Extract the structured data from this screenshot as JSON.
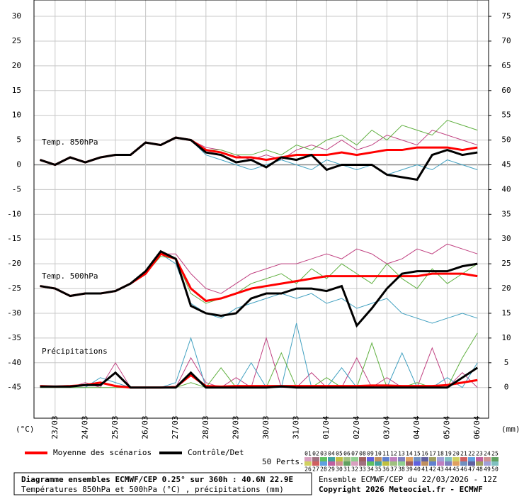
{
  "chart_data": {
    "type": "line",
    "y_label": "(°C)",
    "y2_label": "(mm)",
    "annotations": [
      "Temp. 850hPa",
      "Temp. 500hPa",
      "Précipitations"
    ],
    "grid": true,
    "xlim": [
      -0.7,
      14.37
    ],
    "xticks": [
      {
        "value": 0,
        "label": "23/03"
      },
      {
        "value": 1,
        "label": "24/03"
      },
      {
        "value": 2,
        "label": "25/03"
      },
      {
        "value": 3,
        "label": "26/03"
      },
      {
        "value": 4,
        "label": "27/03"
      },
      {
        "value": 5,
        "label": "28/03"
      },
      {
        "value": 6,
        "label": "29/03"
      },
      {
        "value": 7,
        "label": "30/03"
      },
      {
        "value": 8,
        "label": "31/03"
      },
      {
        "value": 9,
        "label": "01/04"
      },
      {
        "value": 10,
        "label": "02/04"
      },
      {
        "value": 11,
        "label": "03/04"
      },
      {
        "value": 12,
        "label": "04/04"
      },
      {
        "value": 13,
        "label": "05/04"
      },
      {
        "value": 14,
        "label": "06/04"
      }
    ],
    "ylim": [
      -51.2,
      33.3
    ],
    "yticks": [
      -45,
      -40,
      -35,
      -30,
      -25,
      -20,
      -15,
      -10,
      -5,
      0,
      5,
      10,
      15,
      20,
      25,
      30
    ],
    "y2lim": [
      -6.2,
      78.3
    ],
    "y2ticks": [
      0,
      5,
      10,
      15,
      20,
      25,
      30,
      35,
      40,
      45,
      50,
      55,
      60,
      65,
      70,
      75
    ],
    "x": [
      -0.5,
      0,
      0.5,
      1,
      1.5,
      2,
      2.5,
      3,
      3.5,
      4,
      4.5,
      5,
      5.5,
      6,
      6.5,
      7,
      7.5,
      8,
      8.5,
      9,
      9.5,
      10,
      10.5,
      11,
      11.5,
      12,
      12.5,
      13,
      13.5,
      14
    ],
    "series": [
      {
        "color": "#c04080",
        "values": [
          1,
          0,
          1.5,
          0.5,
          1.5,
          2,
          2,
          4.5,
          4,
          5.5,
          5,
          3.5,
          3,
          2,
          1,
          2,
          1,
          3,
          4,
          3,
          5,
          3,
          4,
          6,
          5,
          4,
          7,
          6,
          5,
          4
        ]
      },
      {
        "color": "#40a0c0",
        "values": [
          1,
          0,
          1.5,
          0.5,
          1.5,
          2,
          2,
          4.5,
          4,
          5.5,
          5,
          2,
          1,
          0,
          -1,
          0,
          1,
          0,
          -1,
          1,
          0,
          -1,
          0,
          -2,
          -1,
          0,
          -1,
          1,
          0,
          -1
        ]
      },
      {
        "color": "#60b040",
        "values": [
          1,
          0,
          1.5,
          0.5,
          1.5,
          2,
          2,
          4.5,
          4,
          5.5,
          5,
          3,
          3,
          2,
          2,
          3,
          2,
          4,
          3,
          5,
          6,
          4,
          7,
          5,
          8,
          7,
          6,
          9,
          8,
          7
        ]
      },
      {
        "color": "#c04080",
        "values": [
          -24.5,
          -25,
          -26.5,
          -26,
          -26,
          -25.5,
          -24,
          -22,
          -18,
          -18,
          -22,
          -25,
          -26,
          -24,
          -22,
          -21,
          -20,
          -20,
          -19,
          -18,
          -19,
          -17,
          -18,
          -20,
          -19,
          -17,
          -18,
          -16,
          -17,
          -18
        ]
      },
      {
        "color": "#40a0c0",
        "values": [
          -24.5,
          -25,
          -26.5,
          -26,
          -26,
          -25.5,
          -24,
          -22,
          -18,
          -20,
          -28,
          -30,
          -31,
          -29,
          -28,
          -27,
          -26,
          -27,
          -26,
          -28,
          -27,
          -29,
          -28,
          -27,
          -30,
          -31,
          -32,
          -31,
          -30,
          -31
        ]
      },
      {
        "color": "#60b040",
        "values": [
          -24.5,
          -25,
          -26.5,
          -26,
          -26,
          -25.5,
          -24,
          -22,
          -18.5,
          -19,
          -26,
          -28,
          -27,
          -26,
          -24,
          -23,
          -22,
          -24,
          -21,
          -23,
          -20,
          -22,
          -24,
          -20,
          -23,
          -25,
          -21,
          -24,
          -22,
          -20
        ]
      },
      {
        "color": "#c04080",
        "axis": "y2",
        "values": [
          0,
          0,
          0,
          1,
          0,
          5,
          0,
          0,
          0,
          0,
          6,
          1,
          0,
          2,
          0,
          10,
          0,
          0,
          3,
          0,
          0,
          6,
          0,
          2,
          0,
          0,
          8,
          0,
          3,
          0
        ]
      },
      {
        "color": "#40a0c0",
        "axis": "y2",
        "values": [
          0,
          0,
          0,
          0,
          2,
          1,
          0,
          0,
          0,
          1,
          10,
          0,
          0,
          0,
          5,
          0,
          0,
          13,
          0,
          0,
          4,
          0,
          0,
          0,
          7,
          0,
          0,
          2,
          0,
          5
        ]
      },
      {
        "color": "#60b040",
        "axis": "y2",
        "values": [
          0,
          0,
          0,
          0,
          0,
          0,
          0,
          0,
          0,
          0,
          1,
          0,
          4,
          0,
          0,
          0,
          7,
          0,
          0,
          2,
          0,
          0,
          9,
          0,
          0,
          1,
          0,
          0,
          6,
          11
        ]
      },
      {
        "name": "Moyenne des scénarios",
        "color": "#ff0000",
        "values": [
          1,
          0,
          1.5,
          0.5,
          1.5,
          2,
          2,
          4.5,
          4,
          5.5,
          5,
          3,
          2.5,
          1.5,
          1.5,
          1,
          1.5,
          2,
          2,
          2,
          2.5,
          2,
          2.5,
          3,
          3,
          3.5,
          3.5,
          3.5,
          3,
          3.5
        ]
      },
      {
        "name": "Contrôle/Det",
        "color": "#000000",
        "values": [
          1,
          0,
          1.5,
          0.5,
          1.5,
          2,
          2,
          4.5,
          4,
          5.5,
          5,
          2.5,
          2,
          0.5,
          1,
          -0.5,
          1.5,
          1,
          2,
          -1,
          0,
          0,
          0,
          -2,
          -2.5,
          -3,
          2,
          3,
          2,
          2.5
        ]
      },
      {
        "color": "#ff0000",
        "values": [
          -24.5,
          -25,
          -26.5,
          -26,
          -26,
          -25.5,
          -24,
          -22,
          -18,
          -19,
          -25,
          -27.5,
          -27,
          -26,
          -25,
          -24.5,
          -24,
          -23.5,
          -23,
          -22.5,
          -22.5,
          -22.5,
          -22.5,
          -22.5,
          -22.5,
          -22.5,
          -22,
          -22,
          -22,
          -22.5
        ]
      },
      {
        "color": "#000000",
        "values": [
          -24.5,
          -25,
          -26.5,
          -26,
          -26,
          -25.5,
          -24,
          -21.5,
          -17.5,
          -19,
          -28.5,
          -30,
          -30.5,
          -30,
          -27,
          -26,
          -26,
          -25,
          -25,
          -25.5,
          -24.5,
          -32.5,
          -29,
          -25,
          -22,
          -21.5,
          -21.5,
          -21.5,
          -20.5,
          -20
        ]
      },
      {
        "color": "#ff0000",
        "axis": "y2",
        "values": [
          0.3,
          0.2,
          0.3,
          0.5,
          1,
          0.3,
          0,
          0,
          0,
          0.1,
          2.5,
          0.3,
          0.2,
          0.3,
          0.3,
          0.3,
          0.3,
          0.3,
          0.3,
          0.3,
          0.3,
          0.3,
          0.4,
          0.4,
          0.3,
          0.3,
          0.3,
          0.5,
          1,
          1.5
        ]
      },
      {
        "color": "#000000",
        "axis": "y2",
        "values": [
          0.2,
          0.2,
          0.2,
          0.5,
          0.5,
          3,
          0,
          0,
          0,
          0,
          3,
          0,
          0,
          0,
          0,
          0,
          0.2,
          0,
          0,
          0,
          0,
          0,
          0,
          0,
          0,
          0,
          0,
          0,
          2,
          4
        ]
      }
    ]
  },
  "perturbations": {
    "label": "50 Perts.",
    "numbers": [
      "01",
      "02",
      "03",
      "04",
      "05",
      "06",
      "07",
      "08",
      "09",
      "10",
      "11",
      "12",
      "13",
      "14",
      "15",
      "16",
      "17",
      "18",
      "19",
      "20",
      "21",
      "22",
      "23",
      "24",
      "25",
      "26",
      "27",
      "28",
      "29",
      "30",
      "31",
      "32",
      "33",
      "34",
      "35",
      "36",
      "37",
      "38",
      "39",
      "40",
      "41",
      "42",
      "43",
      "44",
      "45",
      "46",
      "47",
      "48",
      "49",
      "50"
    ]
  },
  "footer": {
    "title": "Diagramme ensembles ECMWF/CEP 0.25° sur 360h : 40.6N 22.9E",
    "subtitle": "Températures 850hPa et 500hPa (°C) , précipitations (mm)",
    "run": "Ensemble ECMWF/CEP du 22/03/2026 - 12Z",
    "copyright": "Copyright 2026 Meteociel.fr - ECMWF"
  }
}
